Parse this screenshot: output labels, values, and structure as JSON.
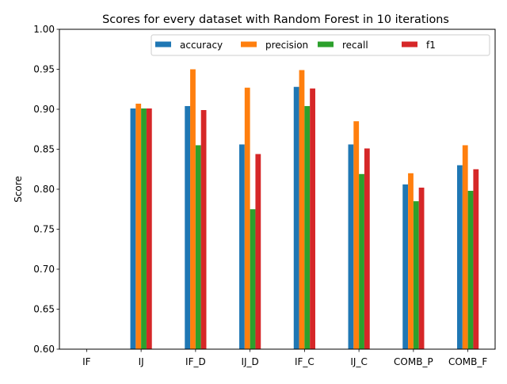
{
  "chart_data": {
    "type": "bar",
    "title": "Scores for every dataset with Random Forest in 10 iterations",
    "xlabel": "",
    "ylabel": "Score",
    "ylim": [
      0.6,
      1.0
    ],
    "yticks": [
      0.6,
      0.65,
      0.7,
      0.75,
      0.8,
      0.85,
      0.9,
      0.95,
      1.0
    ],
    "ytick_labels": [
      "0.60",
      "0.65",
      "0.70",
      "0.75",
      "0.80",
      "0.85",
      "0.90",
      "0.95",
      "1.00"
    ],
    "categories": [
      "IF",
      "IJ",
      "IF_D",
      "IJ_D",
      "IF_C",
      "IJ_C",
      "COMB_P",
      "COMB_F"
    ],
    "series": [
      {
        "name": "accuracy",
        "color": "#1f77b4",
        "values": [
          0.6,
          0.901,
          0.904,
          0.856,
          0.928,
          0.856,
          0.806,
          0.83
        ]
      },
      {
        "name": "precision",
        "color": "#ff7f0e",
        "values": [
          0.6,
          0.907,
          0.95,
          0.927,
          0.949,
          0.885,
          0.82,
          0.855
        ]
      },
      {
        "name": "recall",
        "color": "#2ca02c",
        "values": [
          0.6,
          0.901,
          0.855,
          0.775,
          0.904,
          0.819,
          0.785,
          0.798
        ]
      },
      {
        "name": "f1",
        "color": "#d62728",
        "values": [
          0.6,
          0.901,
          0.899,
          0.844,
          0.926,
          0.851,
          0.802,
          0.825
        ]
      }
    ],
    "grid": false,
    "legend": "top-right"
  }
}
